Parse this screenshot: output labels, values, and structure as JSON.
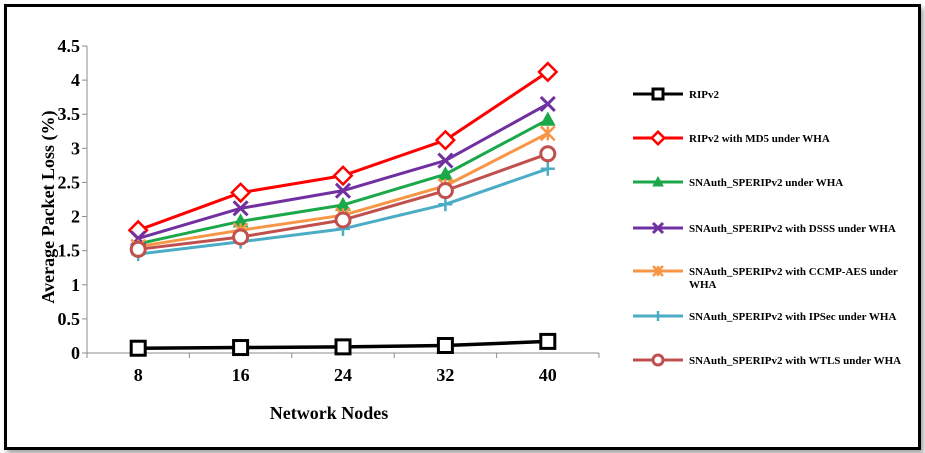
{
  "chart_data": {
    "type": "line",
    "x": [
      8,
      16,
      24,
      32,
      40
    ],
    "xlabel": "Network Nodes",
    "ylabel": "Average Packet Loss (%)",
    "ylim": [
      0,
      4.5
    ],
    "yticks": [
      0,
      0.5,
      1,
      1.5,
      2,
      2.5,
      3,
      3.5,
      4,
      4.5
    ],
    "grid": false,
    "legend_position": "right",
    "series": [
      {
        "name": "RIPv2",
        "color": "#000000",
        "marker": "square",
        "values": [
          0.07,
          0.08,
          0.09,
          0.11,
          0.17
        ]
      },
      {
        "name": "RIPv2 with MD5 under WHA",
        "color": "#ff0000",
        "marker": "diamond",
        "values": [
          1.8,
          2.35,
          2.6,
          3.12,
          4.12
        ]
      },
      {
        "name": "SNAuth_SPERIPv2 under WHA",
        "color": "#1aa84a",
        "marker": "triangle",
        "values": [
          1.6,
          1.93,
          2.17,
          2.62,
          3.42
        ]
      },
      {
        "name": "SNAuth_SPERIPv2 with DSSS under WHA",
        "color": "#7030a0",
        "marker": "x",
        "values": [
          1.68,
          2.12,
          2.38,
          2.82,
          3.65
        ]
      },
      {
        "name": "SNAuth_SPERIPv2 with CCMP-AES under WHA",
        "color": "#f79646",
        "marker": "asterisk",
        "values": [
          1.56,
          1.8,
          2.02,
          2.45,
          3.22
        ]
      },
      {
        "name": "SNAuth_SPERIPv2 with IPSec under WHA",
        "color": "#4bacc6",
        "marker": "plus",
        "values": [
          1.45,
          1.63,
          1.82,
          2.18,
          2.7
        ]
      },
      {
        "name": "SNAuth_SPERIPv2 with WTLS under WHA",
        "color": "#c0504d",
        "marker": "circle",
        "values": [
          1.52,
          1.7,
          1.95,
          2.38,
          2.92
        ]
      }
    ]
  }
}
